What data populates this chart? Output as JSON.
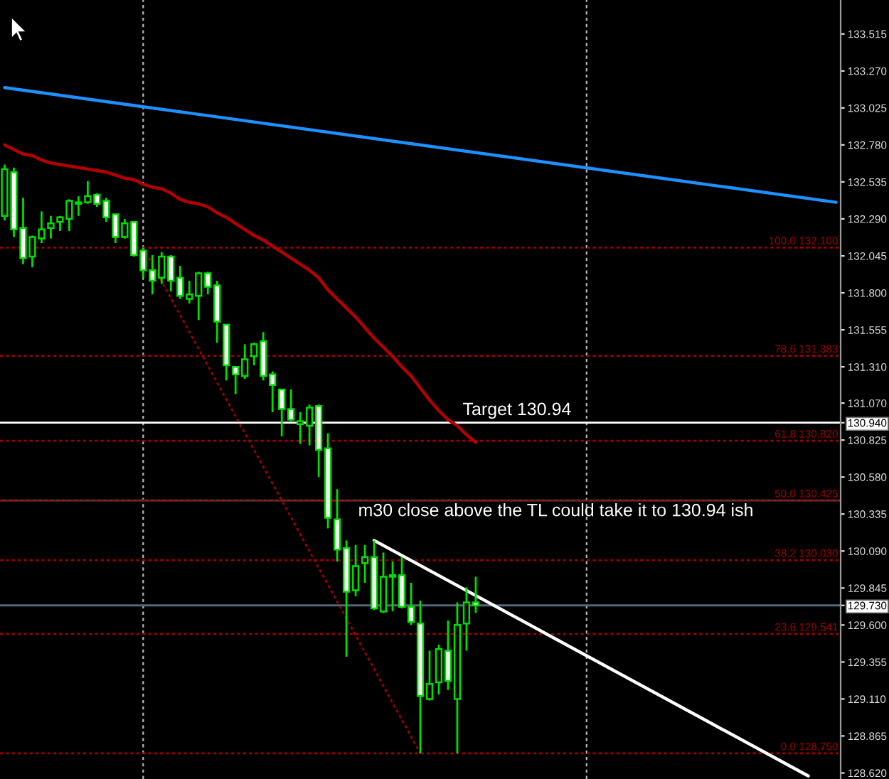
{
  "chart_data": {
    "type": "candlestick",
    "categories": [
      null,
      null,
      null,
      null,
      null,
      null,
      null,
      null,
      null,
      null,
      null,
      null,
      null,
      null,
      null,
      null,
      null,
      null,
      null,
      null,
      null,
      null,
      null,
      null,
      null,
      null,
      null,
      null,
      null,
      null,
      null,
      null,
      null,
      null,
      null,
      null,
      null,
      null,
      null,
      null,
      null,
      null,
      null,
      null,
      null,
      null,
      null,
      null,
      null,
      null,
      null,
      null,
      null,
      null,
      null,
      null,
      null,
      null,
      null,
      null,
      null,
      null,
      null,
      null,
      null,
      null,
      null,
      null,
      null,
      null,
      null,
      null,
      null,
      null,
      null,
      null,
      null,
      null,
      null,
      null,
      null,
      null,
      null,
      null,
      null,
      null,
      null,
      null,
      null,
      null,
      null
    ],
    "ohlc": [
      [
        132.31,
        132.65,
        132.28,
        132.62
      ],
      [
        132.6,
        132.63,
        132.17,
        132.22
      ],
      [
        132.23,
        132.43,
        131.99,
        132.03
      ],
      [
        132.04,
        132.18,
        131.97,
        132.17
      ],
      [
        132.16,
        132.34,
        132.13,
        132.22
      ],
      [
        132.23,
        132.31,
        132.16,
        132.26
      ],
      [
        132.27,
        132.31,
        132.21,
        132.3
      ],
      [
        132.29,
        132.42,
        132.21,
        132.41
      ],
      [
        132.39,
        132.44,
        132.31,
        132.4
      ],
      [
        132.4,
        132.54,
        132.39,
        132.44
      ],
      [
        132.45,
        132.46,
        132.37,
        132.39
      ],
      [
        132.41,
        132.43,
        132.27,
        132.3
      ],
      [
        132.32,
        132.32,
        132.13,
        132.17
      ],
      [
        132.17,
        132.29,
        132.16,
        132.26
      ],
      [
        132.27,
        132.27,
        132.04,
        132.05
      ],
      [
        132.08,
        132.1,
        131.9,
        131.95
      ],
      [
        131.95,
        132.05,
        131.79,
        131.88
      ],
      [
        131.9,
        132.07,
        131.86,
        132.04
      ],
      [
        132.04,
        132.05,
        131.81,
        131.88
      ],
      [
        131.9,
        131.98,
        131.76,
        131.78
      ],
      [
        131.76,
        131.88,
        131.73,
        131.79
      ],
      [
        131.78,
        131.94,
        131.62,
        131.93
      ],
      [
        131.93,
        131.94,
        131.79,
        131.84
      ],
      [
        131.85,
        131.88,
        131.47,
        131.61
      ],
      [
        131.59,
        131.59,
        131.22,
        131.32
      ],
      [
        131.31,
        131.31,
        131.13,
        131.26
      ],
      [
        131.25,
        131.46,
        131.23,
        131.36
      ],
      [
        131.38,
        131.47,
        131.32,
        131.46
      ],
      [
        131.48,
        131.54,
        131.22,
        131.25
      ],
      [
        131.26,
        131.28,
        131.01,
        131.19
      ],
      [
        131.16,
        131.16,
        130.85,
        131.03
      ],
      [
        131.03,
        131.16,
        130.95,
        130.96
      ],
      [
        130.93,
        131.01,
        130.8,
        130.95
      ],
      [
        130.92,
        131.06,
        130.79,
        131.04
      ],
      [
        131.05,
        131.06,
        130.58,
        130.76
      ],
      [
        130.77,
        130.87,
        130.24,
        130.31
      ],
      [
        130.3,
        130.5,
        130.02,
        130.1
      ],
      [
        130.11,
        130.16,
        129.39,
        129.82
      ],
      [
        129.83,
        130.13,
        129.79,
        129.99
      ],
      [
        130.01,
        130.13,
        129.88,
        130.05
      ],
      [
        130.05,
        130.16,
        129.7,
        129.71
      ],
      [
        129.69,
        130.08,
        129.68,
        129.92
      ],
      [
        129.92,
        130.02,
        129.69,
        129.93
      ],
      [
        129.93,
        130.05,
        129.71,
        129.72
      ],
      [
        129.72,
        129.88,
        129.6,
        129.62
      ],
      [
        129.61,
        129.76,
        128.75,
        129.13
      ],
      [
        129.11,
        129.43,
        129.1,
        129.21
      ],
      [
        129.22,
        129.47,
        129.14,
        129.44
      ],
      [
        129.43,
        129.63,
        129.17,
        129.23
      ],
      [
        129.11,
        129.75,
        128.75,
        129.6
      ],
      [
        129.61,
        129.85,
        129.43,
        129.75
      ],
      [
        129.75,
        129.92,
        129.68,
        129.73
      ],
      null,
      null,
      null,
      null,
      null,
      null,
      null,
      null,
      null,
      null,
      null,
      null,
      null,
      null,
      null,
      null,
      null,
      null,
      null,
      null,
      null,
      null,
      null,
      null,
      null,
      null,
      null,
      null,
      null,
      null,
      null,
      null,
      null,
      null,
      null,
      null,
      null,
      null,
      null
    ],
    "color": "#00dd00",
    "colors": [
      "#000000",
      "#ffffff",
      "#ffffff",
      "#000000",
      "#000000",
      "#000000",
      "#000000",
      "#000000",
      "#000000",
      "#000000",
      "#ffffff",
      "#ffffff",
      "#ffffff",
      "#000000",
      "#ffffff",
      "#ffffff",
      "#ffffff",
      "#000000",
      "#ffffff",
      "#ffffff",
      "#000000",
      "#000000",
      "#ffffff",
      "#ffffff",
      "#ffffff",
      "#ffffff",
      "#000000",
      "#000000",
      "#ffffff",
      "#ffffff",
      "#ffffff",
      "#ffffff",
      "#000000",
      "#000000",
      "#ffffff",
      "#ffffff",
      "#ffffff",
      "#ffffff",
      "#000000",
      "#000000",
      "#ffffff",
      "#000000",
      "#000000",
      "#ffffff",
      "#ffffff",
      "#ffffff",
      "#000000",
      "#000000",
      "#ffffff",
      "#000000",
      "#000000",
      "#ffffff",
      null,
      null,
      null,
      null,
      null,
      null,
      null,
      null,
      null,
      null,
      null,
      null,
      null,
      null,
      null,
      null,
      null,
      null,
      null,
      null,
      null,
      null,
      null,
      null,
      null,
      null,
      null,
      null,
      null,
      null,
      null,
      null,
      null,
      null,
      null,
      null,
      null,
      null,
      null
    ],
    "series": [
      {
        "type": "line",
        "color": "#b40000",
        "values": [
          132.78,
          132.75,
          132.72,
          132.71,
          132.68,
          132.66,
          132.65,
          132.64,
          132.63,
          132.62,
          132.61,
          132.6,
          132.58,
          132.56,
          132.55,
          132.52,
          132.5,
          132.49,
          132.46,
          132.42,
          132.4,
          132.39,
          132.37,
          132.33,
          132.3,
          132.26,
          132.22,
          132.18,
          132.15,
          132.11,
          132.07,
          132.03,
          131.99,
          131.95,
          131.9,
          131.82,
          131.76,
          131.7,
          131.64,
          131.57,
          131.5,
          131.44,
          131.38,
          131.31,
          131.25,
          131.17,
          131.09,
          131.02,
          130.96,
          130.92,
          130.86,
          130.81,
          null,
          null,
          null,
          null,
          null,
          null,
          null,
          null,
          null,
          null,
          null,
          null,
          null,
          null,
          null,
          null,
          null,
          null,
          null,
          null,
          null,
          null,
          null,
          null,
          null,
          null,
          null,
          null,
          null,
          null,
          null,
          null,
          null,
          null,
          null,
          null,
          null,
          null,
          null
        ]
      },
      {
        "type": "line",
        "color": "#1e90ff",
        "values": [
          133.16,
          null,
          null,
          null,
          null,
          null,
          null,
          null,
          null,
          null,
          null,
          null,
          null,
          null,
          null,
          null,
          null,
          null,
          null,
          null,
          null,
          null,
          null,
          null,
          null,
          null,
          null,
          null,
          null,
          null,
          null,
          null,
          null,
          null,
          null,
          null,
          null,
          null,
          null,
          null,
          null,
          null,
          null,
          null,
          null,
          null,
          null,
          null,
          null,
          null,
          null,
          null,
          null,
          null,
          null,
          null,
          null,
          null,
          null,
          null,
          null,
          null,
          null,
          null,
          null,
          null,
          null,
          null,
          null,
          null,
          null,
          null,
          null,
          null,
          null,
          null,
          null,
          null,
          null,
          null,
          null,
          null,
          null,
          null,
          null,
          null,
          null,
          null,
          null,
          null,
          132.4
        ]
      },
      {
        "type": "line",
        "color": "#ffffff",
        "values": [
          null,
          null,
          null,
          null,
          null,
          null,
          null,
          null,
          null,
          null,
          null,
          null,
          null,
          null,
          null,
          null,
          null,
          null,
          null,
          null,
          null,
          null,
          null,
          null,
          null,
          null,
          null,
          null,
          null,
          null,
          null,
          null,
          null,
          null,
          null,
          null,
          null,
          null,
          null,
          null,
          130.16,
          null,
          null,
          null,
          null,
          null,
          null,
          null,
          null,
          null,
          null,
          null,
          null,
          null,
          null,
          null,
          null,
          null,
          null,
          null,
          null,
          null,
          null,
          null,
          null,
          null,
          null,
          null,
          null,
          null,
          null,
          null,
          null,
          null,
          null,
          null,
          null,
          null,
          null,
          null,
          null,
          null,
          null,
          null,
          null,
          null,
          null,
          128.6,
          null,
          null,
          null
        ]
      },
      {
        "type": "line",
        "color": "#a00000",
        "line_style": "dotted",
        "values": [
          null,
          null,
          null,
          null,
          null,
          null,
          null,
          null,
          null,
          null,
          null,
          null,
          null,
          null,
          null,
          132.1,
          null,
          null,
          null,
          null,
          null,
          null,
          null,
          null,
          null,
          null,
          null,
          null,
          null,
          null,
          null,
          null,
          null,
          null,
          null,
          null,
          null,
          null,
          null,
          null,
          null,
          null,
          null,
          null,
          null,
          128.75,
          null,
          null,
          null,
          null,
          null,
          null,
          null,
          null,
          null,
          null,
          null,
          null,
          null,
          null,
          null,
          null,
          null,
          null,
          null,
          null,
          null,
          null,
          null,
          null,
          null,
          null,
          null,
          null,
          null,
          null,
          null,
          null,
          null,
          null,
          null,
          null,
          null,
          null,
          null,
          null,
          null,
          null,
          null,
          null,
          null
        ]
      }
    ],
    "ylim": [
      128.58,
      133.74
    ],
    "yticks": [
      133.515,
      {
        "value": 133.27,
        "label": "133.270"
      },
      133.025,
      {
        "value": 132.78,
        "label": "132.780"
      },
      132.535,
      {
        "value": 132.29,
        "label": "132.290"
      },
      132.045,
      {
        "value": 131.8,
        "label": "131.800"
      },
      131.555,
      {
        "value": 131.31,
        "label": "131.310"
      },
      {
        "value": 131.07,
        "label": "131.070"
      },
      {
        "value": 130.94,
        "label": "130.940"
      },
      130.825,
      {
        "value": 130.58,
        "label": "130.580"
      },
      130.335,
      {
        "value": 130.09,
        "label": "130.090"
      },
      129.845,
      {
        "value": 129.73,
        "label": "129.730"
      },
      {
        "value": 129.6,
        "label": "129.600"
      },
      129.355,
      {
        "value": 129.11,
        "label": "129.110"
      },
      128.865,
      {
        "value": 128.62,
        "label": "128.620"
      }
    ],
    "ref_lines": [
      {
        "axis": "y",
        "value": 130.425,
        "color": "#4a4440",
        "line_style": "solid"
      },
      {
        "axis": "y",
        "value": 132.1,
        "label": "100.0 132.100",
        "color": "#a00000",
        "line_style": "dotted"
      },
      {
        "axis": "y",
        "value": 131.383,
        "label": "78.6 131.383",
        "color": "#a00000",
        "line_style": "dotted"
      },
      {
        "axis": "y",
        "value": 130.82,
        "label": "61.8 130.820",
        "color": "#a00000",
        "line_style": "dotted"
      },
      {
        "axis": "y",
        "value": 130.425,
        "label": "50.0 130.425",
        "color": "#a00000",
        "line_style": "dotted"
      },
      {
        "axis": "y",
        "value": 130.03,
        "label": "38.2 130.030",
        "color": "#a00000",
        "line_style": "dotted"
      },
      {
        "axis": "y",
        "value": 129.541,
        "label": "23.6 129.541",
        "color": "#a00000",
        "line_style": "dotted"
      },
      {
        "axis": "y",
        "value": 128.75,
        "label": "0.0 128.750",
        "color": "#a00000",
        "line_style": "dotted"
      },
      {
        "axis": "y",
        "value": 130.94,
        "label": "Target 130.94",
        "color": "#ffffff",
        "line_style": "solid"
      },
      {
        "axis": "y",
        "value": 129.73,
        "color": "#52687a",
        "line_style": "solid"
      }
    ],
    "annotations": [
      "m30 close above the TL could take it to 130.94 ish"
    ]
  }
}
